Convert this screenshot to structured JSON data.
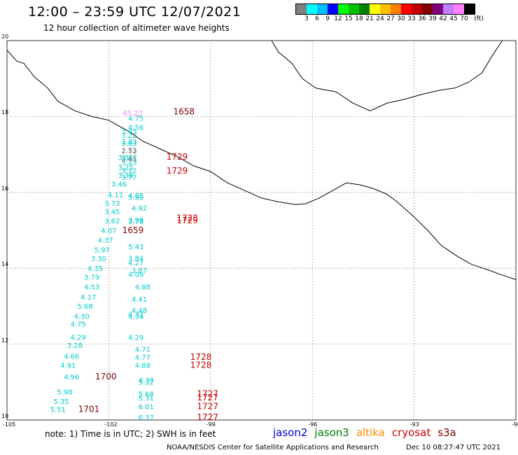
{
  "title": "12:00 – 23:59 UTC 12/07/2021",
  "subtitle": "12 hour collection of altimeter wave heights",
  "colorbar": {
    "colors": [
      "#808080",
      "#00ffff",
      "#00bfff",
      "#0000ff",
      "#00ff00",
      "#00c000",
      "#008000",
      "#ffff00",
      "#ffc000",
      "#ff8000",
      "#ff0000",
      "#c00000",
      "#800000",
      "#800080",
      "#c080ff",
      "#ff80ff",
      "#000000"
    ],
    "labels": [
      "3",
      "6",
      "9",
      "12",
      "15",
      "18",
      "21",
      "24",
      "27",
      "30",
      "33",
      "36",
      "39",
      "42",
      "45",
      "70",
      "(ft)"
    ]
  },
  "note": "note: 1) Time is in UTC; 2) SWH is in feet",
  "legend": [
    {
      "label": "jason2",
      "color": "#0000cc"
    },
    {
      "label": "jason3",
      "color": "#008000"
    },
    {
      "label": "altika",
      "color": "#ff8c00"
    },
    {
      "label": "cryosat",
      "color": "#cc0000"
    },
    {
      "label": "s3a",
      "color": "#800000"
    }
  ],
  "credit": "NOAA/NESDIS Center for Satellite Applications and Research",
  "timestamp": "Dec 10 08:27:47 UTC 2021",
  "chart_data": {
    "type": "scatter",
    "title": "12:00 – 23:59 UTC 12/07/2021",
    "xlim": [
      -105,
      -90
    ],
    "ylim": [
      10,
      20
    ],
    "xticks": [
      "-105",
      "-102",
      "-99",
      "-96",
      "-93",
      "-90"
    ],
    "yticks": [
      "10",
      "12",
      "14",
      "16",
      "18",
      "20"
    ],
    "grid": true,
    "series": [
      {
        "name": "cryosat",
        "color": "#00cccc",
        "points": [
          {
            "lon": -101.2,
            "lat": 17.89,
            "v": "4.75"
          },
          {
            "lon": -101.2,
            "lat": 17.65,
            "v": "4.56"
          },
          {
            "lon": -101.4,
            "lat": 17.55,
            "v": "3.45"
          },
          {
            "lon": -101.4,
            "lat": 17.44,
            "v": "3.22"
          },
          {
            "lon": -101.4,
            "lat": 17.27,
            "v": "3.83"
          },
          {
            "lon": -101.4,
            "lat": 17.22,
            "v": "3.63"
          },
          {
            "lon": -101.5,
            "lat": 16.85,
            "v": "3.31"
          },
          {
            "lon": -101.4,
            "lat": 16.85,
            "v": "3.17"
          },
          {
            "lon": -101.4,
            "lat": 16.73,
            "v": "3.23"
          },
          {
            "lon": -101.5,
            "lat": 16.6,
            "v": "3.25"
          },
          {
            "lon": -101.4,
            "lat": 16.5,
            "v": "3.12"
          },
          {
            "lon": -101.5,
            "lat": 16.38,
            "v": "3.38"
          },
          {
            "lon": -101.4,
            "lat": 16.33,
            "v": "3.77"
          },
          {
            "lon": -101.7,
            "lat": 16.15,
            "v": "3.46"
          },
          {
            "lon": -101.8,
            "lat": 15.87,
            "v": "4.11"
          },
          {
            "lon": -101.2,
            "lat": 15.85,
            "v": "4.85"
          },
          {
            "lon": -101.2,
            "lat": 15.8,
            "v": "5.30"
          },
          {
            "lon": -101.9,
            "lat": 15.65,
            "v": "3.73"
          },
          {
            "lon": -101.1,
            "lat": 15.52,
            "v": "4.92"
          },
          {
            "lon": -101.9,
            "lat": 15.42,
            "v": "3.45"
          },
          {
            "lon": -101.9,
            "lat": 15.18,
            "v": "3.62"
          },
          {
            "lon": -101.2,
            "lat": 15.2,
            "v": "3.99"
          },
          {
            "lon": -101.2,
            "lat": 15.17,
            "v": "3.78"
          },
          {
            "lon": -102.0,
            "lat": 14.93,
            "v": "4.07"
          },
          {
            "lon": -102.1,
            "lat": 14.68,
            "v": "4.37"
          },
          {
            "lon": -101.2,
            "lat": 14.5,
            "v": "5.43"
          },
          {
            "lon": -102.2,
            "lat": 14.42,
            "v": "5.97"
          },
          {
            "lon": -102.3,
            "lat": 14.19,
            "v": "3.30"
          },
          {
            "lon": -101.2,
            "lat": 14.2,
            "v": "3.84"
          },
          {
            "lon": -101.2,
            "lat": 14.08,
            "v": "4.27"
          },
          {
            "lon": -102.4,
            "lat": 13.93,
            "v": "4.35"
          },
          {
            "lon": -101.1,
            "lat": 13.87,
            "v": "3.87"
          },
          {
            "lon": -101.2,
            "lat": 13.77,
            "v": "4.09"
          },
          {
            "lon": -102.5,
            "lat": 13.7,
            "v": "3.79"
          },
          {
            "lon": -102.5,
            "lat": 13.44,
            "v": "4.53"
          },
          {
            "lon": -101.0,
            "lat": 13.44,
            "v": "4.88"
          },
          {
            "lon": -102.6,
            "lat": 13.17,
            "v": "4.17"
          },
          {
            "lon": -101.1,
            "lat": 13.12,
            "v": "4.41"
          },
          {
            "lon": -102.7,
            "lat": 12.93,
            "v": "5.68"
          },
          {
            "lon": -101.1,
            "lat": 12.82,
            "v": "4.48"
          },
          {
            "lon": -102.8,
            "lat": 12.67,
            "v": "4.30"
          },
          {
            "lon": -101.2,
            "lat": 12.72,
            "v": "4.32"
          },
          {
            "lon": -101.2,
            "lat": 12.66,
            "v": "4.34"
          },
          {
            "lon": -102.9,
            "lat": 12.46,
            "v": "4.75"
          },
          {
            "lon": -102.9,
            "lat": 12.11,
            "v": "4.29"
          },
          {
            "lon": -101.2,
            "lat": 12.11,
            "v": "4.29"
          },
          {
            "lon": -103.0,
            "lat": 11.9,
            "v": "3.28"
          },
          {
            "lon": -101.0,
            "lat": 11.8,
            "v": "4.71"
          },
          {
            "lon": -103.1,
            "lat": 11.61,
            "v": "4.66"
          },
          {
            "lon": -101.0,
            "lat": 11.59,
            "v": "4.77"
          },
          {
            "lon": -103.2,
            "lat": 11.37,
            "v": "4.91"
          },
          {
            "lon": -101.0,
            "lat": 11.37,
            "v": "4.88"
          },
          {
            "lon": -103.1,
            "lat": 11.07,
            "v": "4.96"
          },
          {
            "lon": -100.9,
            "lat": 10.99,
            "v": "4.39"
          },
          {
            "lon": -100.9,
            "lat": 10.93,
            "v": "5.32"
          },
          {
            "lon": -103.3,
            "lat": 10.67,
            "v": "5.98"
          },
          {
            "lon": -100.9,
            "lat": 10.62,
            "v": "5.68"
          },
          {
            "lon": -100.9,
            "lat": 10.52,
            "v": "5.31"
          },
          {
            "lon": -103.4,
            "lat": 10.42,
            "v": "5.35"
          },
          {
            "lon": -100.9,
            "lat": 10.29,
            "v": "6.01"
          },
          {
            "lon": -103.5,
            "lat": 10.21,
            "v": "5.51"
          },
          {
            "lon": -100.9,
            "lat": 10.0,
            "v": "6.37"
          }
        ]
      },
      {
        "name": "gray",
        "color": "#808080",
        "points": [
          {
            "lon": -101.4,
            "lat": 17.04,
            "v": "2.73"
          },
          {
            "lon": -101.4,
            "lat": 17.03,
            "v": "2.52"
          },
          {
            "lon": -101.4,
            "lat": 16.82,
            "v": "2.65"
          }
        ]
      },
      {
        "name": "pink",
        "color": "#ff80ff",
        "points": [
          {
            "lon": -101.3,
            "lat": 18.03,
            "v": "45.22"
          }
        ]
      }
    ],
    "time_labels": [
      {
        "lon": -100.1,
        "lat": 18.05,
        "v": "1658",
        "color": "#800000"
      },
      {
        "lon": -100.3,
        "lat": 16.86,
        "v": "1729",
        "color": "#cc0000"
      },
      {
        "lon": -100.3,
        "lat": 16.49,
        "v": "1729",
        "color": "#cc0000"
      },
      {
        "lon": -100.0,
        "lat": 15.25,
        "v": "1728",
        "color": "#cc0000"
      },
      {
        "lon": -100.0,
        "lat": 15.18,
        "v": "1729",
        "color": "#cc0000"
      },
      {
        "lon": -101.6,
        "lat": 14.93,
        "v": "1659",
        "color": "#800000"
      },
      {
        "lon": -99.6,
        "lat": 11.59,
        "v": "1728",
        "color": "#cc0000"
      },
      {
        "lon": -99.6,
        "lat": 11.37,
        "v": "1728",
        "color": "#cc0000"
      },
      {
        "lon": -102.4,
        "lat": 11.07,
        "v": "1700",
        "color": "#800000"
      },
      {
        "lon": -99.4,
        "lat": 10.62,
        "v": "1727",
        "color": "#cc0000"
      },
      {
        "lon": -99.4,
        "lat": 10.52,
        "v": "1727",
        "color": "#cc0000"
      },
      {
        "lon": -99.4,
        "lat": 10.29,
        "v": "1727",
        "color": "#cc0000"
      },
      {
        "lon": -102.9,
        "lat": 10.21,
        "v": "1701",
        "color": "#800000"
      },
      {
        "lon": -99.4,
        "lat": 10.0,
        "v": "1727",
        "color": "#cc0000"
      }
    ],
    "coastline": [
      [
        -105.0,
        19.75
      ],
      [
        -104.7,
        19.45
      ],
      [
        -104.5,
        19.4
      ],
      [
        -104.2,
        19.05
      ],
      [
        -103.8,
        18.75
      ],
      [
        -103.5,
        18.4
      ],
      [
        -103.0,
        18.15
      ],
      [
        -102.5,
        18.0
      ],
      [
        -102.0,
        17.9
      ],
      [
        -101.7,
        17.75
      ],
      [
        -101.4,
        17.6
      ],
      [
        -101.0,
        17.35
      ],
      [
        -100.5,
        17.15
      ],
      [
        -100.0,
        16.95
      ],
      [
        -99.5,
        16.7
      ],
      [
        -99.0,
        16.55
      ],
      [
        -98.5,
        16.25
      ],
      [
        -98.0,
        16.05
      ],
      [
        -97.5,
        15.85
      ],
      [
        -97.0,
        15.75
      ],
      [
        -96.5,
        15.68
      ],
      [
        -96.2,
        15.7
      ],
      [
        -95.8,
        15.85
      ],
      [
        -95.3,
        16.1
      ],
      [
        -95.0,
        16.25
      ],
      [
        -94.6,
        16.2
      ],
      [
        -94.2,
        16.1
      ],
      [
        -93.8,
        15.95
      ],
      [
        -93.5,
        15.75
      ],
      [
        -93.0,
        15.35
      ],
      [
        -92.6,
        15.0
      ],
      [
        -92.2,
        14.6
      ],
      [
        -91.7,
        14.3
      ],
      [
        -91.3,
        14.1
      ],
      [
        -90.8,
        13.95
      ],
      [
        -90.5,
        13.85
      ],
      [
        -90.0,
        13.7
      ]
    ],
    "gulf_coast": [
      [
        -97.2,
        20.0
      ],
      [
        -97.0,
        19.7
      ],
      [
        -96.6,
        19.4
      ],
      [
        -96.3,
        19.0
      ],
      [
        -95.9,
        18.75
      ],
      [
        -95.3,
        18.65
      ],
      [
        -94.8,
        18.35
      ],
      [
        -94.3,
        18.15
      ],
      [
        -93.8,
        18.35
      ],
      [
        -93.3,
        18.45
      ],
      [
        -92.7,
        18.6
      ],
      [
        -92.2,
        18.7
      ],
      [
        -91.8,
        18.75
      ],
      [
        -91.4,
        18.9
      ],
      [
        -91.0,
        19.15
      ],
      [
        -90.7,
        19.6
      ],
      [
        -90.4,
        20.0
      ]
    ]
  }
}
